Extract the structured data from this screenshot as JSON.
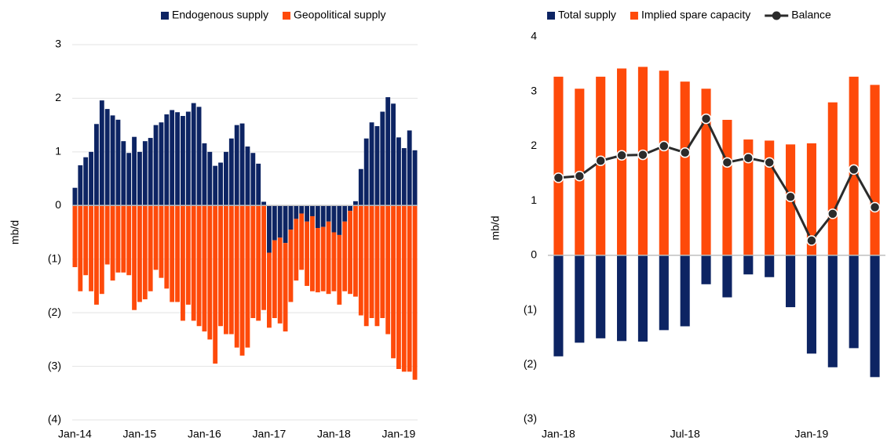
{
  "chart_data": [
    {
      "type": "stacked_bar",
      "y_label": "mb/d",
      "categories": [
        "Jan-14",
        null,
        null,
        null,
        null,
        null,
        null,
        null,
        null,
        null,
        null,
        null,
        "Jan-15",
        null,
        null,
        null,
        null,
        null,
        null,
        null,
        null,
        null,
        null,
        null,
        "Jan-16",
        null,
        null,
        null,
        null,
        null,
        null,
        null,
        null,
        null,
        null,
        null,
        "Jan-17",
        null,
        null,
        null,
        null,
        null,
        null,
        null,
        null,
        null,
        null,
        null,
        "Jan-18",
        null,
        null,
        null,
        null,
        null,
        null,
        null,
        null,
        null,
        null,
        null,
        "Jan-19",
        null,
        null,
        null
      ],
      "series": [
        {
          "name": "Endogenous supply",
          "color": "#0d2463",
          "values": [
            0.33,
            0.75,
            0.9,
            1.0,
            1.52,
            1.96,
            1.8,
            1.68,
            1.6,
            1.2,
            0.98,
            1.28,
            1.0,
            1.2,
            1.26,
            1.5,
            1.55,
            1.7,
            1.78,
            1.74,
            1.67,
            1.75,
            1.91,
            1.84,
            1.16,
            1.0,
            0.74,
            0.8,
            1.0,
            1.25,
            1.5,
            1.53,
            1.1,
            0.98,
            0.78,
            0.07,
            -0.88,
            -0.65,
            -0.6,
            -0.7,
            -0.45,
            -0.25,
            -0.15,
            -0.3,
            -0.2,
            -0.42,
            -0.4,
            -0.3,
            -0.5,
            -0.55,
            -0.3,
            -0.1,
            0.08,
            0.68,
            1.25,
            1.55,
            1.48,
            1.75,
            2.02,
            1.9,
            1.27,
            1.07,
            1.4,
            1.03
          ]
        },
        {
          "name": "Geopolitical supply",
          "color": "#fe4a0a",
          "values": [
            -1.15,
            -1.6,
            -1.3,
            -1.6,
            -1.85,
            -1.65,
            -1.1,
            -1.4,
            -1.25,
            -1.25,
            -1.3,
            -1.95,
            -1.8,
            -1.75,
            -1.6,
            -1.2,
            -1.35,
            -1.55,
            -1.8,
            -1.8,
            -2.15,
            -1.85,
            -2.15,
            -2.25,
            -2.35,
            -2.5,
            -2.95,
            -2.25,
            -2.4,
            -2.4,
            -2.65,
            -2.8,
            -2.65,
            -2.1,
            -2.15,
            -1.95,
            -1.4,
            -1.45,
            -1.6,
            -1.65,
            -1.35,
            -1.15,
            -1.05,
            -1.2,
            -1.4,
            -1.2,
            -1.2,
            -1.35,
            -1.1,
            -1.3,
            -1.3,
            -1.55,
            -1.7,
            -2.05,
            -2.25,
            -2.1,
            -2.25,
            -2.1,
            -2.4,
            -2.85,
            -3.05,
            -3.1,
            -3.1,
            -3.25
          ]
        }
      ],
      "ylim": [
        -4,
        3
      ],
      "yticks": [
        {
          "value": -4,
          "label": "(4)"
        },
        {
          "value": -3,
          "label": "(3)"
        },
        {
          "value": -2,
          "label": "(2)"
        },
        {
          "value": -1,
          "label": "(1)"
        },
        0,
        1,
        2,
        3
      ],
      "grid": true,
      "legend": "top"
    },
    {
      "type": "combo",
      "y_label": "mb/d",
      "categories": [
        "Jan-18",
        null,
        null,
        null,
        null,
        null,
        "Jul-18",
        null,
        null,
        null,
        null,
        null,
        "Jan-19",
        null,
        null,
        null
      ],
      "series": [
        {
          "name": "Total supply",
          "type": "bar",
          "color": "#0d2463",
          "values": [
            -1.85,
            -1.6,
            -1.52,
            -1.57,
            -1.58,
            -1.37,
            -1.3,
            -0.53,
            -0.77,
            -0.35,
            -0.4,
            -0.95,
            -1.8,
            -2.05,
            -1.7,
            -2.23
          ]
        },
        {
          "name": "Implied spare capacity",
          "type": "bar",
          "color": "#fe4a0a",
          "values": [
            3.27,
            3.05,
            3.27,
            3.42,
            3.45,
            3.38,
            3.18,
            3.05,
            2.48,
            2.12,
            2.1,
            2.03,
            2.05,
            2.8,
            3.27,
            3.12
          ]
        },
        {
          "name": "Balance",
          "type": "line",
          "color": "#2b2b2b",
          "values": [
            1.42,
            1.45,
            1.73,
            1.83,
            1.84,
            2.0,
            1.88,
            2.5,
            1.7,
            1.78,
            1.7,
            1.07,
            0.27,
            0.76,
            1.57,
            0.88
          ]
        }
      ],
      "ylim": [
        -3,
        4
      ],
      "yticks": [
        {
          "value": -3,
          "label": "(3)"
        },
        {
          "value": -2,
          "label": "(2)"
        },
        {
          "value": -1,
          "label": "(1)"
        },
        0,
        1,
        2,
        3,
        4
      ],
      "grid": false,
      "legend": "top"
    }
  ]
}
